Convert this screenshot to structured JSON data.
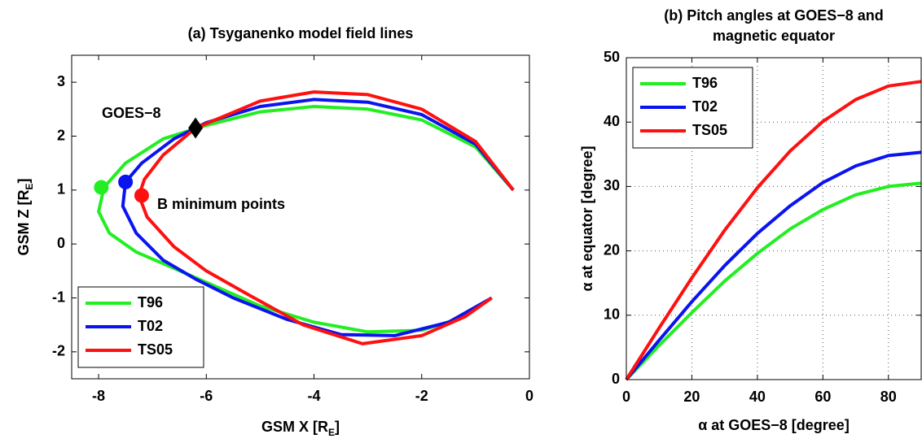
{
  "chart_data": [
    {
      "type": "line",
      "title": "(a) Tsyganenko model field lines",
      "xlabel": [
        "GSM X [R",
        "E",
        "]"
      ],
      "ylabel": [
        "GSM Z [R",
        "E",
        "]"
      ],
      "xlim": [
        -8.5,
        0
      ],
      "ylim": [
        -2.5,
        3.5
      ],
      "xticks": [
        -8,
        -6,
        -4,
        -2,
        0
      ],
      "yticks": [
        -2,
        -1,
        0,
        1,
        2,
        3
      ],
      "grid": false,
      "legend": "lower left",
      "annotations": [
        "GOES−8",
        "B minimum points"
      ],
      "goes8": {
        "x": -6.2,
        "y": 2.15,
        "color": "#000000"
      },
      "series": [
        {
          "name": "T96",
          "color": "#22ee22",
          "x": [
            -0.3,
            -1,
            -2,
            -3,
            -4,
            -5,
            -6,
            -6.8,
            -7.5,
            -7.9,
            -8.0,
            -7.8,
            -7.3,
            -6.6,
            -5.8,
            -5,
            -4,
            -3,
            -2,
            -1.2,
            -0.7
          ],
          "y": [
            1.0,
            1.8,
            2.3,
            2.5,
            2.55,
            2.45,
            2.2,
            1.95,
            1.5,
            1.05,
            0.6,
            0.2,
            -0.15,
            -0.45,
            -0.8,
            -1.15,
            -1.45,
            -1.63,
            -1.6,
            -1.35,
            -1.0
          ],
          "b_min": {
            "x": -7.95,
            "y": 1.05
          }
        },
        {
          "name": "T02",
          "color": "#0a14f0",
          "x": [
            -0.3,
            -1,
            -2,
            -3,
            -4,
            -5,
            -6,
            -6.6,
            -7.2,
            -7.5,
            -7.55,
            -7.3,
            -6.8,
            -6.2,
            -5.5,
            -4.5,
            -3.5,
            -2.5,
            -1.5,
            -0.7
          ],
          "y": [
            1.0,
            1.85,
            2.4,
            2.63,
            2.68,
            2.55,
            2.25,
            1.95,
            1.5,
            1.15,
            0.7,
            0.2,
            -0.3,
            -0.65,
            -1.0,
            -1.4,
            -1.68,
            -1.7,
            -1.45,
            -1.0
          ],
          "b_min": {
            "x": -7.5,
            "y": 1.15
          }
        },
        {
          "name": "TS05",
          "color": "#ff1010",
          "x": [
            -0.3,
            -1,
            -2,
            -3,
            -4,
            -5,
            -6.2,
            -6.8,
            -7.15,
            -7.25,
            -7.1,
            -6.6,
            -6,
            -5.2,
            -4.2,
            -3.1,
            -2,
            -1.2,
            -0.7
          ],
          "y": [
            1.0,
            1.9,
            2.5,
            2.77,
            2.82,
            2.65,
            2.15,
            1.65,
            1.2,
            0.9,
            0.5,
            -0.05,
            -0.5,
            -0.95,
            -1.5,
            -1.85,
            -1.7,
            -1.35,
            -1.0
          ],
          "b_min": {
            "x": -7.2,
            "y": 0.9
          }
        }
      ]
    },
    {
      "type": "line",
      "title": [
        "(b) Pitch angles at GOES−8 and",
        "magnetic equator"
      ],
      "xlabel": [
        "α at GOES−8 [degree]"
      ],
      "ylabel": [
        "α at equator [degree]"
      ],
      "xlim": [
        0,
        90
      ],
      "ylim": [
        0,
        50
      ],
      "xticks": [
        0,
        20,
        40,
        60,
        80
      ],
      "yticks": [
        0,
        10,
        20,
        30,
        40,
        50
      ],
      "grid": true,
      "legend": "upper left",
      "series": [
        {
          "name": "T96",
          "color": "#22ee22",
          "x": [
            0,
            10,
            20,
            30,
            40,
            50,
            60,
            70,
            80,
            90
          ],
          "y": [
            0,
            5.3,
            10.4,
            15.3,
            19.6,
            23.4,
            26.4,
            28.7,
            30.0,
            30.5
          ]
        },
        {
          "name": "T02",
          "color": "#0a14f0",
          "x": [
            0,
            10,
            20,
            30,
            40,
            50,
            60,
            70,
            80,
            90
          ],
          "y": [
            0,
            6.1,
            12.1,
            17.7,
            22.7,
            27.0,
            30.6,
            33.2,
            34.8,
            35.3
          ]
        },
        {
          "name": "TS05",
          "color": "#ff1010",
          "x": [
            0,
            10,
            20,
            30,
            40,
            50,
            60,
            70,
            80,
            90
          ],
          "y": [
            0,
            8.0,
            15.8,
            23.2,
            29.8,
            35.5,
            40.1,
            43.5,
            45.6,
            46.3
          ]
        }
      ]
    }
  ]
}
